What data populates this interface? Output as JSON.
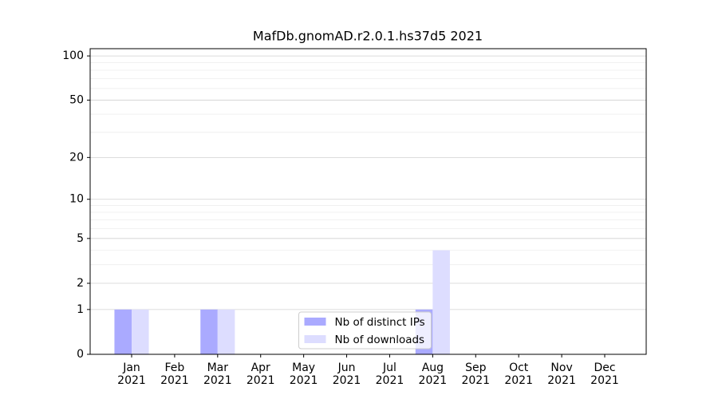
{
  "chart_data": {
    "type": "bar",
    "title": "MafDb.gnomAD.r2.0.1.hs37d5 2021",
    "categories": [
      "Jan\n2021",
      "Feb\n2021",
      "Mar\n2021",
      "Apr\n2021",
      "May\n2021",
      "Jun\n2021",
      "Jul\n2021",
      "Aug\n2021",
      "Sep\n2021",
      "Oct\n2021",
      "Nov\n2021",
      "Dec\n2021"
    ],
    "series": [
      {
        "name": "Nb of distinct IPs",
        "color": "#aaaaff",
        "values": [
          1,
          0,
          1,
          0,
          0,
          0,
          0,
          1,
          0,
          0,
          0,
          0
        ]
      },
      {
        "name": "Nb of downloads",
        "color": "#ddddff",
        "values": [
          1,
          0,
          1,
          0,
          0,
          0,
          0,
          4,
          0,
          0,
          0,
          0
        ]
      }
    ],
    "yscale": "log1p",
    "ylim": [
      0,
      112
    ],
    "yticks": [
      0,
      1,
      2,
      5,
      10,
      20,
      50,
      100
    ],
    "minor_yticks": [
      3,
      4,
      6,
      7,
      8,
      9,
      30,
      40,
      60,
      70,
      80,
      90
    ],
    "grid": true,
    "legend": "lower center"
  }
}
